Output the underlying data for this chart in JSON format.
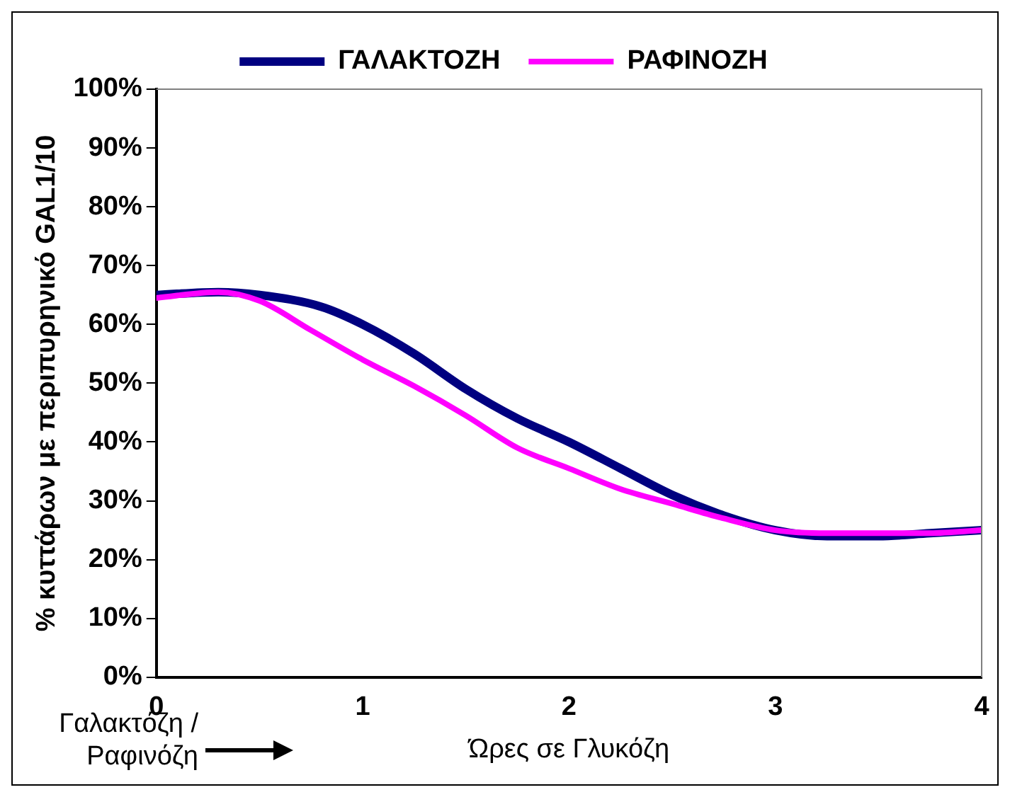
{
  "chart_data": {
    "type": "line",
    "xlabel": "Ώρες σε Γλυκόζη",
    "ylabel": "% κυττάρων με περιπυρηνικό GAL1/10",
    "annotations": [
      "Γαλακτόζη /Ραφινόζη"
    ],
    "xlim": [
      0,
      4
    ],
    "xticks": [
      0,
      1,
      2,
      3,
      4
    ],
    "ylim": [
      0,
      100
    ],
    "yticks": [
      {
        "value": 0,
        "label": "0%"
      },
      {
        "value": 10,
        "label": "10%"
      },
      {
        "value": 20,
        "label": "20%"
      },
      {
        "value": 30,
        "label": "30%"
      },
      {
        "value": 40,
        "label": "40%"
      },
      {
        "value": 50,
        "label": "50%"
      },
      {
        "value": 60,
        "label": "60%"
      },
      {
        "value": 70,
        "label": "70%"
      },
      {
        "value": 80,
        "label": "80%"
      },
      {
        "value": 90,
        "label": "90%"
      },
      {
        "value": 100,
        "label": "100%"
      }
    ],
    "grid": false,
    "legend": "top",
    "marker": "none",
    "line_style": "solid",
    "series": [
      {
        "name": "ΓΑΛΑΚΤΟΖΗ",
        "color": "#000080",
        "x": [
          0,
          0.3,
          0.5,
          0.8,
          1,
          1.25,
          1.5,
          1.75,
          2,
          2.25,
          2.5,
          2.75,
          3,
          3.25,
          3.5,
          3.75,
          4
        ],
        "values": [
          65,
          65.5,
          65,
          63,
          60,
          55,
          49,
          44,
          40,
          35.5,
          31,
          27.5,
          25,
          24,
          24,
          24.5,
          25
        ]
      },
      {
        "name": "ΡΑΦΙΝΟΖΗ",
        "color": "#ff00ff",
        "x": [
          0,
          0.3,
          0.5,
          0.75,
          1,
          1.25,
          1.5,
          1.75,
          2,
          2.25,
          2.5,
          2.75,
          3,
          3.25,
          3.5,
          3.75,
          4
        ],
        "values": [
          64.5,
          65.5,
          64,
          59,
          54,
          49.5,
          44.5,
          39,
          35.5,
          32,
          29.5,
          27,
          25,
          24.5,
          24.5,
          24.5,
          25
        ]
      }
    ]
  }
}
